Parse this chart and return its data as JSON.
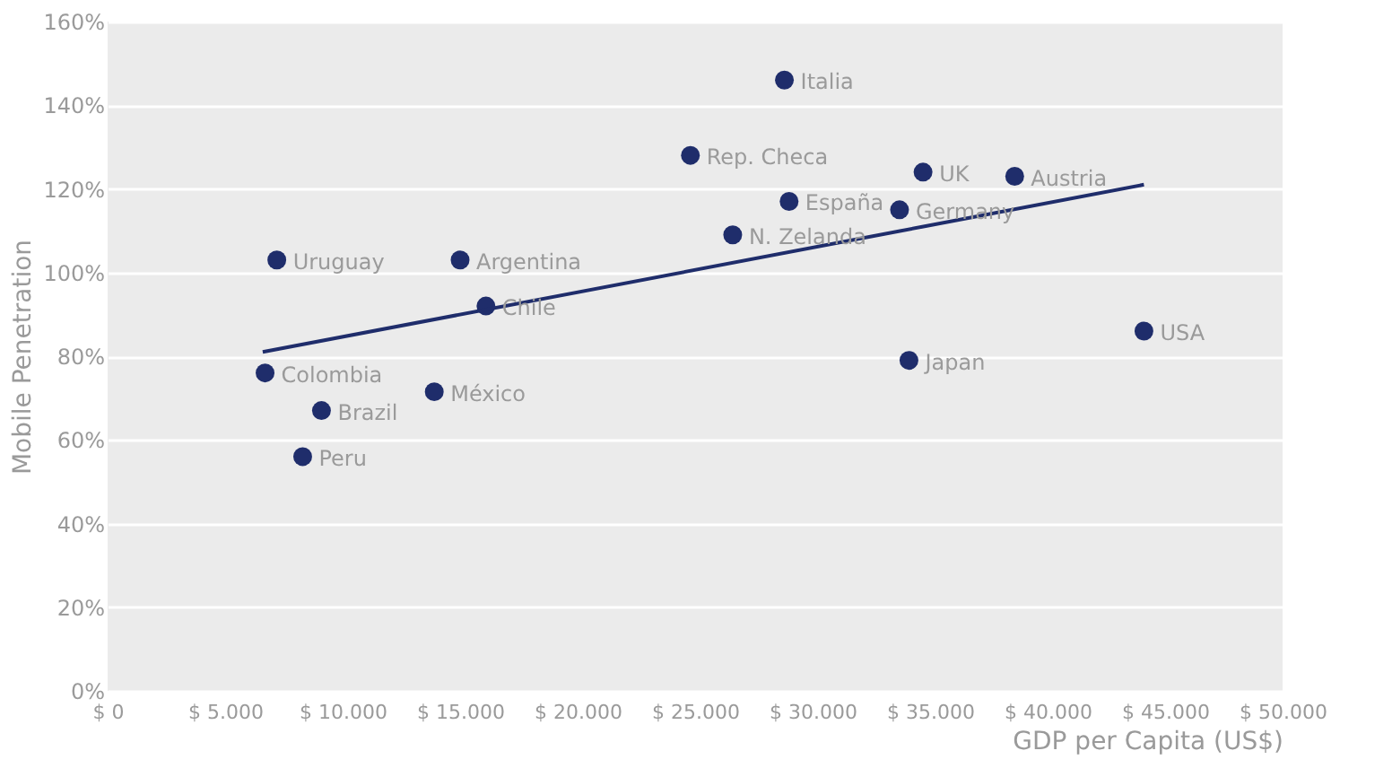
{
  "chart_data": {
    "type": "scatter",
    "xlabel": "GDP per Capita (US$)",
    "ylabel": "Mobile Penetration",
    "x": [
      28800,
      24800,
      29000,
      34700,
      38600,
      33700,
      26600,
      7200,
      15000,
      16100,
      44100,
      34100,
      6700,
      9100,
      13900,
      8300
    ],
    "series": [
      {
        "color": "#1f2d6b",
        "marker": "circle",
        "values": [
          146,
          128,
          117,
          124,
          123,
          115,
          109,
          103,
          103,
          92,
          86,
          79,
          76,
          67,
          71.5,
          56
        ]
      },
      {
        "type": "line",
        "color": "#1f2d6b",
        "x": [
          6600,
          44100
        ],
        "values": [
          81,
          121
        ],
        "marker": "none",
        "line_style": "solid"
      }
    ],
    "annotations": [
      {
        "text": "Italia",
        "x": 28800,
        "y": 146
      },
      {
        "text": "Rep. Checa",
        "x": 24800,
        "y": 128
      },
      {
        "text": "España",
        "x": 29000,
        "y": 117
      },
      {
        "text": "UK",
        "x": 34700,
        "y": 124
      },
      {
        "text": "Austria",
        "x": 38600,
        "y": 123
      },
      {
        "text": "Germany",
        "x": 33700,
        "y": 115
      },
      {
        "text": "N. Zelanda",
        "x": 26600,
        "y": 109
      },
      {
        "text": "Uruguay",
        "x": 7200,
        "y": 103
      },
      {
        "text": "Argentina",
        "x": 15000,
        "y": 103
      },
      {
        "text": "Chile",
        "x": 16100,
        "y": 92
      },
      {
        "text": "USA",
        "x": 44100,
        "y": 86
      },
      {
        "text": "Japan",
        "x": 34100,
        "y": 79
      },
      {
        "text": "Colombia",
        "x": 6700,
        "y": 76
      },
      {
        "text": "Brazil",
        "x": 9100,
        "y": 67
      },
      {
        "text": "México",
        "x": 13900,
        "y": 71.5
      },
      {
        "text": "Peru",
        "x": 8300,
        "y": 56
      }
    ],
    "xlim": [
      0,
      50000
    ],
    "xticks": [
      {
        "value": 0,
        "label": "$ 0"
      },
      {
        "value": 5000,
        "label": "$ 5.000"
      },
      {
        "value": 10000,
        "label": "$ 10.000"
      },
      {
        "value": 15000,
        "label": "$ 15.000"
      },
      {
        "value": 20000,
        "label": "$ 20.000"
      },
      {
        "value": 25000,
        "label": "$ 25.000"
      },
      {
        "value": 30000,
        "label": "$ 30.000"
      },
      {
        "value": 35000,
        "label": "$ 35.000"
      },
      {
        "value": 40000,
        "label": "$ 40.000"
      },
      {
        "value": 45000,
        "label": "$ 45.000"
      },
      {
        "value": 50000,
        "label": "$ 50.000"
      }
    ],
    "ylim": [
      0,
      160
    ],
    "yticks": [
      {
        "value": 0,
        "label": "0%"
      },
      {
        "value": 20,
        "label": "20%"
      },
      {
        "value": 40,
        "label": "40%"
      },
      {
        "value": 60,
        "label": "60%"
      },
      {
        "value": 80,
        "label": "80%"
      },
      {
        "value": 100,
        "label": "100%"
      },
      {
        "value": 120,
        "label": "120%"
      },
      {
        "value": 140,
        "label": "140%"
      },
      {
        "value": 160,
        "label": "160%"
      }
    ],
    "grid": "y"
  }
}
